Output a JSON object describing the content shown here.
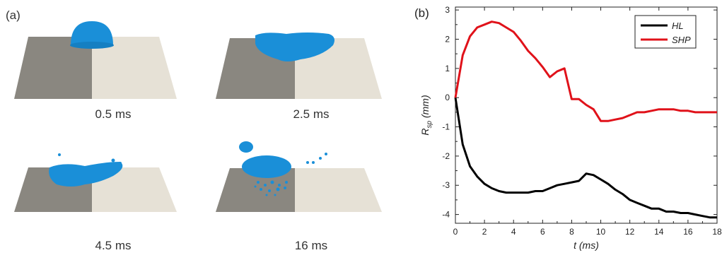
{
  "panel_a": {
    "label": "(a)",
    "frames": [
      {
        "caption": "0.5 ms"
      },
      {
        "caption": "2.5 ms"
      },
      {
        "caption": "4.5 ms"
      },
      {
        "caption": "16 ms"
      }
    ]
  },
  "panel_b": {
    "label": "(b)"
  },
  "colors": {
    "droplet": "#1a8fd8",
    "surface_dark": "#8a8780",
    "surface_light": "#e6e1d6",
    "HL": "#000000",
    "SHP": "#e0121a"
  },
  "chart_data": {
    "type": "line",
    "xlabel": "t (ms)",
    "ylabel": "R",
    "ylabel_sub": "sp",
    "ylabel_unit": "(mm)",
    "xlim": [
      0,
      18
    ],
    "ylim": [
      -4.3,
      3.1
    ],
    "xticks": [
      0,
      2,
      4,
      6,
      8,
      10,
      12,
      14,
      16,
      18
    ],
    "yticks": [
      -4,
      -3,
      -2,
      -1,
      0,
      1,
      2,
      3
    ],
    "legend_position": "top-right",
    "grid": false,
    "series": [
      {
        "name": "HL",
        "color": "#000000",
        "x": [
          0,
          0.5,
          1,
          1.5,
          2,
          2.5,
          3,
          3.5,
          4,
          4.5,
          5,
          5.5,
          6,
          6.5,
          7,
          7.5,
          8,
          8.5,
          9,
          9.5,
          10,
          10.5,
          11,
          11.5,
          12,
          12.5,
          13,
          13.5,
          14,
          14.5,
          15,
          15.5,
          16,
          16.5,
          17,
          17.5,
          18
        ],
        "values": [
          0,
          -1.6,
          -2.35,
          -2.7,
          -2.95,
          -3.1,
          -3.2,
          -3.25,
          -3.25,
          -3.25,
          -3.25,
          -3.2,
          -3.2,
          -3.1,
          -3.0,
          -2.95,
          -2.9,
          -2.85,
          -2.6,
          -2.65,
          -2.8,
          -2.95,
          -3.15,
          -3.3,
          -3.5,
          -3.6,
          -3.7,
          -3.8,
          -3.8,
          -3.9,
          -3.9,
          -3.95,
          -3.95,
          -4.0,
          -4.05,
          -4.1,
          -4.1
        ]
      },
      {
        "name": "SHP",
        "color": "#e0121a",
        "x": [
          0,
          0.5,
          1,
          1.5,
          2,
          2.5,
          3,
          3.5,
          4,
          4.5,
          5,
          5.5,
          6,
          6.5,
          7,
          7.5,
          8,
          8.5,
          9,
          9.5,
          10,
          10.5,
          11,
          11.5,
          12,
          12.5,
          13,
          13.5,
          14,
          14.5,
          15,
          15.5,
          16,
          16.5,
          17,
          17.5,
          18
        ],
        "values": [
          0,
          1.45,
          2.1,
          2.4,
          2.5,
          2.6,
          2.55,
          2.4,
          2.25,
          1.95,
          1.6,
          1.35,
          1.05,
          0.7,
          0.9,
          1.0,
          -0.05,
          -0.05,
          -0.25,
          -0.4,
          -0.8,
          -0.8,
          -0.75,
          -0.7,
          -0.6,
          -0.5,
          -0.5,
          -0.45,
          -0.4,
          -0.4,
          -0.4,
          -0.45,
          -0.45,
          -0.5,
          -0.5,
          -0.5,
          -0.5
        ]
      }
    ]
  }
}
